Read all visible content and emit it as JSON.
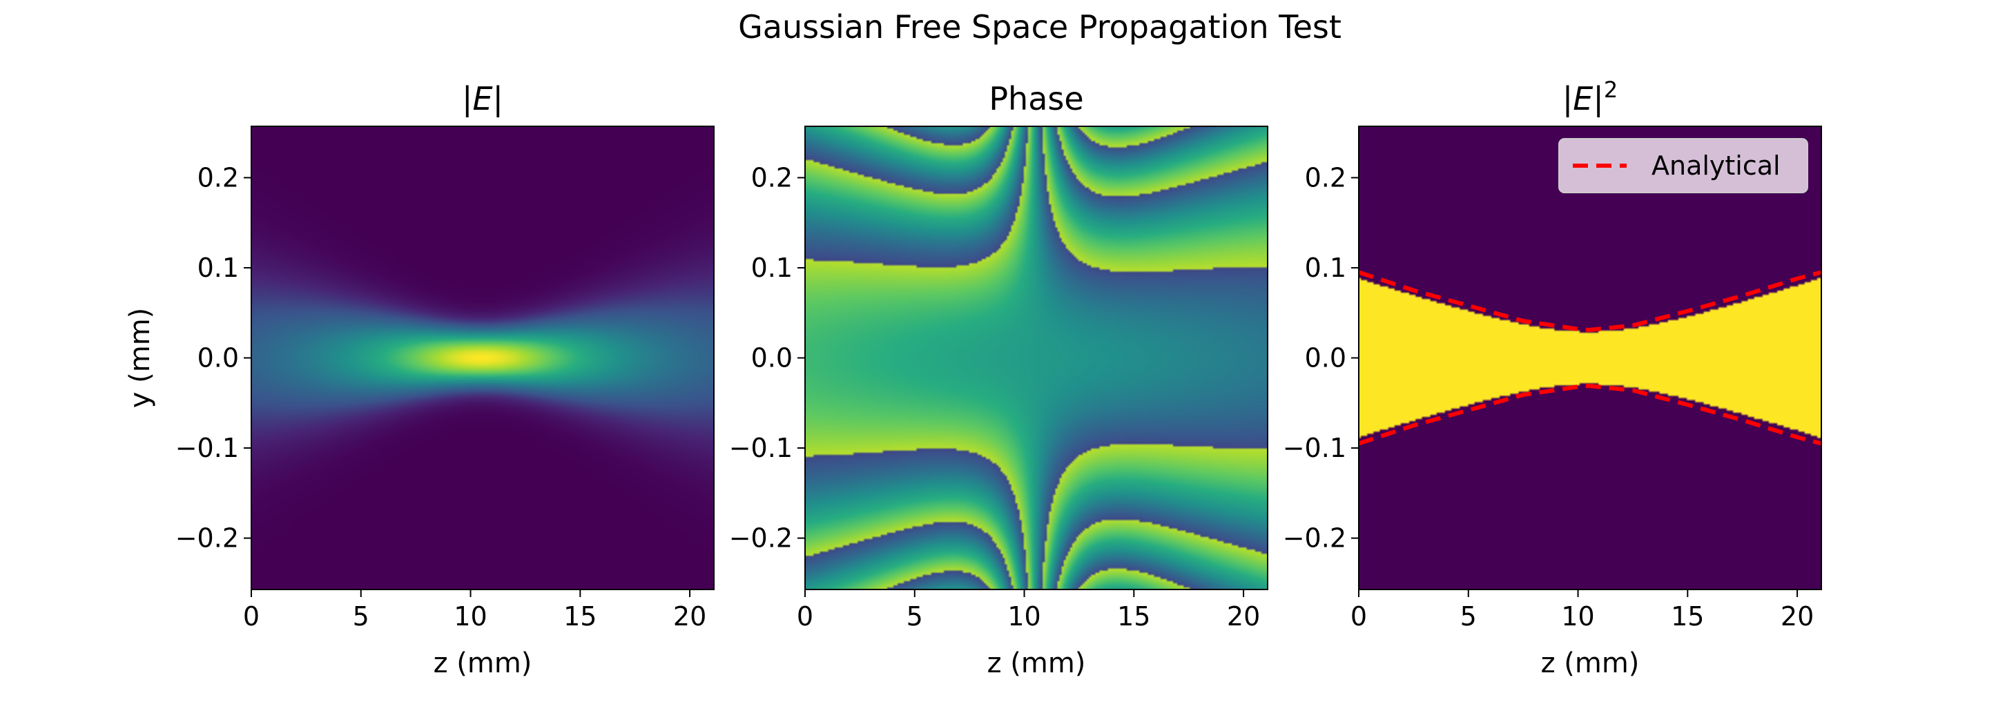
{
  "figure": {
    "suptitle": "Gaussian Free Space Propagation Test"
  },
  "colors": {
    "viridis_low": "#440154",
    "viridis_high": "#fde725",
    "phase_wrap_high": "#b8de29",
    "analytical_line": "#ff0000",
    "legend_bg": "#e6d4e6"
  },
  "chart_data": [
    {
      "type": "heatmap",
      "title": "|E|",
      "xlabel": "z (mm)",
      "ylabel": "y (mm)",
      "xlim": [
        0,
        21.1
      ],
      "ylim": [
        -0.257,
        0.257
      ],
      "xticks": [
        0,
        5,
        10,
        15,
        20
      ],
      "xtick_labels": [
        "0",
        "5",
        "10",
        "15",
        "20"
      ],
      "yticks": [
        0.2,
        0.1,
        0.0,
        -0.1,
        -0.2
      ],
      "ytick_labels": [
        "0.2",
        "0.1",
        "0.0",
        "−0.1",
        "−0.2"
      ],
      "colormap": "viridis",
      "field": "gaussian_beam_amplitude",
      "beam": {
        "waist_z": 10.5,
        "waist_w": 0.031,
        "edge_w": 0.095
      }
    },
    {
      "type": "heatmap",
      "title": "Phase",
      "xlabel": "z (mm)",
      "ylabel": "",
      "xlim": [
        0,
        21.1
      ],
      "ylim": [
        -0.257,
        0.257
      ],
      "xticks": [
        0,
        5,
        10,
        15,
        20
      ],
      "xtick_labels": [
        "0",
        "5",
        "10",
        "15",
        "20"
      ],
      "yticks": [
        0.2,
        0.1,
        0.0,
        -0.1,
        -0.2
      ],
      "ytick_labels": [
        "0.2",
        "0.1",
        "0.0",
        "−0.1",
        "−0.2"
      ],
      "colormap": "viridis",
      "field": "gaussian_beam_phase_wrapped",
      "beam": {
        "waist_z": 10.5,
        "waist_w": 0.031,
        "edge_w": 0.095
      }
    },
    {
      "type": "heatmap",
      "title": "|E|2",
      "xlabel": "z (mm)",
      "ylabel": "",
      "xlim": [
        0,
        21.1
      ],
      "ylim": [
        -0.257,
        0.257
      ],
      "xticks": [
        0,
        5,
        10,
        15,
        20
      ],
      "xtick_labels": [
        "0",
        "5",
        "10",
        "15",
        "20"
      ],
      "yticks": [
        0.2,
        0.1,
        0.0,
        -0.1,
        -0.2
      ],
      "ytick_labels": [
        "0.2",
        "0.1",
        "0.0",
        "−0.1",
        "−0.2"
      ],
      "colormap": "viridis",
      "field": "gaussian_beam_thresholded",
      "beam": {
        "waist_z": 10.5,
        "waist_w": 0.029,
        "edge_w": 0.088
      },
      "legend": {
        "label": "Analytical",
        "placement": "top-right"
      },
      "analytical": {
        "style": "dashed",
        "z": [
          0,
          2.5,
          5,
          7.5,
          10,
          10.5,
          12.5,
          15,
          17.5,
          20,
          21.1
        ],
        "w_upper": [
          0.095,
          0.075,
          0.058,
          0.041,
          0.032,
          0.031,
          0.036,
          0.052,
          0.069,
          0.088,
          0.095
        ],
        "w_lower": [
          -0.095,
          -0.075,
          -0.058,
          -0.041,
          -0.032,
          -0.031,
          -0.036,
          -0.052,
          -0.069,
          -0.088,
          -0.095
        ]
      }
    }
  ]
}
